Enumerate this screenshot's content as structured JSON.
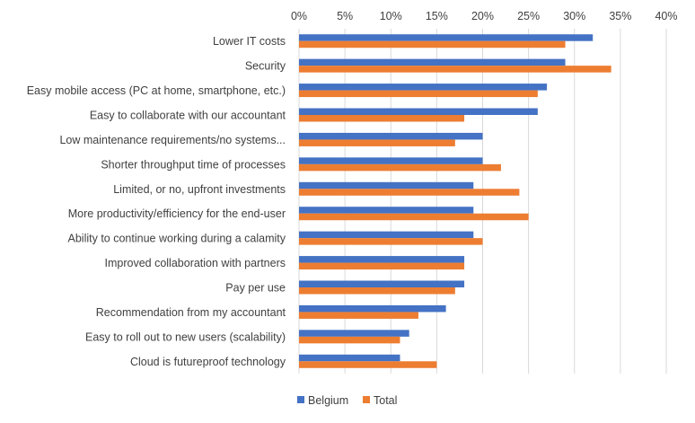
{
  "chart_data": {
    "type": "bar",
    "orientation": "horizontal",
    "xlim": [
      0,
      40
    ],
    "x_ticks": [
      "0%",
      "5%",
      "10%",
      "15%",
      "20%",
      "25%",
      "30%",
      "35%",
      "40%"
    ],
    "categories": [
      "Lower IT costs",
      "Security",
      "Easy mobile access (PC at home, smartphone, etc.)",
      "Easy to collaborate with our accountant",
      "Low maintenance requirements/no systems...",
      "Shorter throughput time of processes",
      "Limited, or no, upfront investments",
      "More productivity/efficiency for the end-user",
      "Ability to continue working during a calamity",
      "Improved collaboration with partners",
      "Pay per use",
      "Recommendation from my accountant",
      "Easy to roll out to new users (scalability)",
      "Cloud is futureproof technology"
    ],
    "series": [
      {
        "name": "Belgium",
        "color": "#4472C4",
        "values": [
          32,
          29,
          27,
          26,
          20,
          20,
          19,
          19,
          19,
          18,
          18,
          16,
          12,
          11
        ]
      },
      {
        "name": "Total",
        "color": "#ED7D31",
        "values": [
          29,
          34,
          26,
          18,
          17,
          22,
          24,
          25,
          20,
          18,
          17,
          13,
          11,
          15
        ]
      }
    ],
    "legend_position": "bottom",
    "grid": true
  },
  "colors": {
    "grid": "#d9d9d9",
    "text": "#404040"
  }
}
